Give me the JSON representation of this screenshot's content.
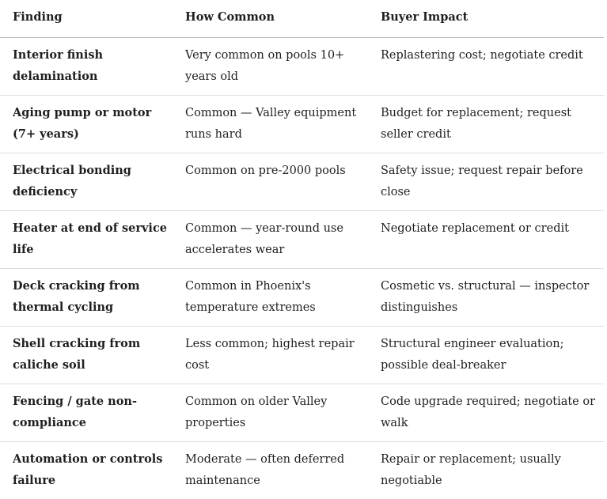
{
  "table": {
    "header": [
      "Finding",
      "How Common",
      "Buyer Impact"
    ],
    "rows": [
      [
        "Interior finish delamination",
        "Very common on pools 10+ years old",
        "Replastering cost; negotiate credit"
      ],
      [
        "Aging pump or motor (7+ years)",
        "Common — Valley equipment runs hard",
        "Budget for replacement; request seller credit"
      ],
      [
        "Electrical bonding deficiency",
        "Common on pre-2000 pools",
        "Safety issue; request repair before close"
      ],
      [
        "Heater at end of service life",
        "Common — year-round use accelerates wear",
        "Negotiate replacement or credit"
      ],
      [
        "Deck cracking from thermal cycling",
        "Common in Phoenix's temperature extremes",
        "Cosmetic vs. structural — inspector distinguishes"
      ],
      [
        "Shell cracking from caliche soil",
        "Less common; highest repair cost",
        "Structural engineer evaluation; possible deal-breaker"
      ],
      [
        "Fencing / gate non-compliance",
        "Common on older Valley properties",
        "Code upgrade required; negotiate or walk"
      ],
      [
        "Automation or controls failure",
        "Moderate — often deferred maintenance",
        "Repair or replacement; usually negotiable"
      ]
    ]
  }
}
